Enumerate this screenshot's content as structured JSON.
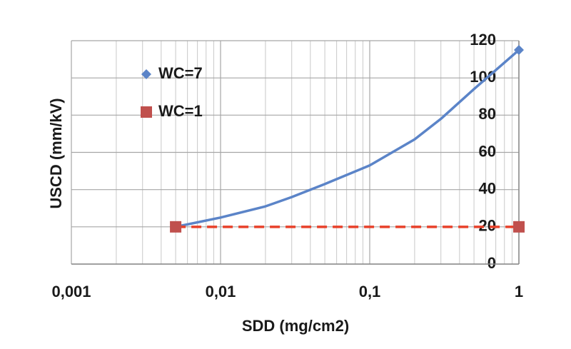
{
  "chart_data": {
    "type": "line",
    "xlabel": "SDD (mg/cm2)",
    "ylabel": "USCD (mm/kV)",
    "x": [
      0.005,
      0.01,
      0.02,
      0.03,
      0.05,
      0.1,
      0.2,
      0.3,
      0.5,
      1
    ],
    "series": [
      {
        "name": "WC=7",
        "color": "#5b84c8",
        "marker": "diamond",
        "linestyle": "solid",
        "values": [
          20,
          25,
          31,
          36,
          43,
          53,
          67,
          78,
          94,
          115
        ]
      },
      {
        "name": "WC=1",
        "color": "#c0504d",
        "marker": "square",
        "marker_color": "#c0504d",
        "line_color": "#e8412a",
        "linestyle": "dashed",
        "values": [
          20,
          null,
          null,
          null,
          null,
          null,
          null,
          null,
          null,
          20
        ]
      }
    ],
    "xscale": "log",
    "xlim": [
      0.001,
      1
    ],
    "xticks": [
      {
        "value": 0.001,
        "label": "0,001"
      },
      {
        "value": 0.01,
        "label": "0,01"
      },
      {
        "value": 0.1,
        "label": "0,1"
      },
      1
    ],
    "ylim": [
      0,
      120
    ],
    "yticks": [
      0,
      20,
      40,
      60,
      80,
      100,
      120
    ],
    "grid": true,
    "minor_grid": true,
    "legend": "upper left"
  }
}
